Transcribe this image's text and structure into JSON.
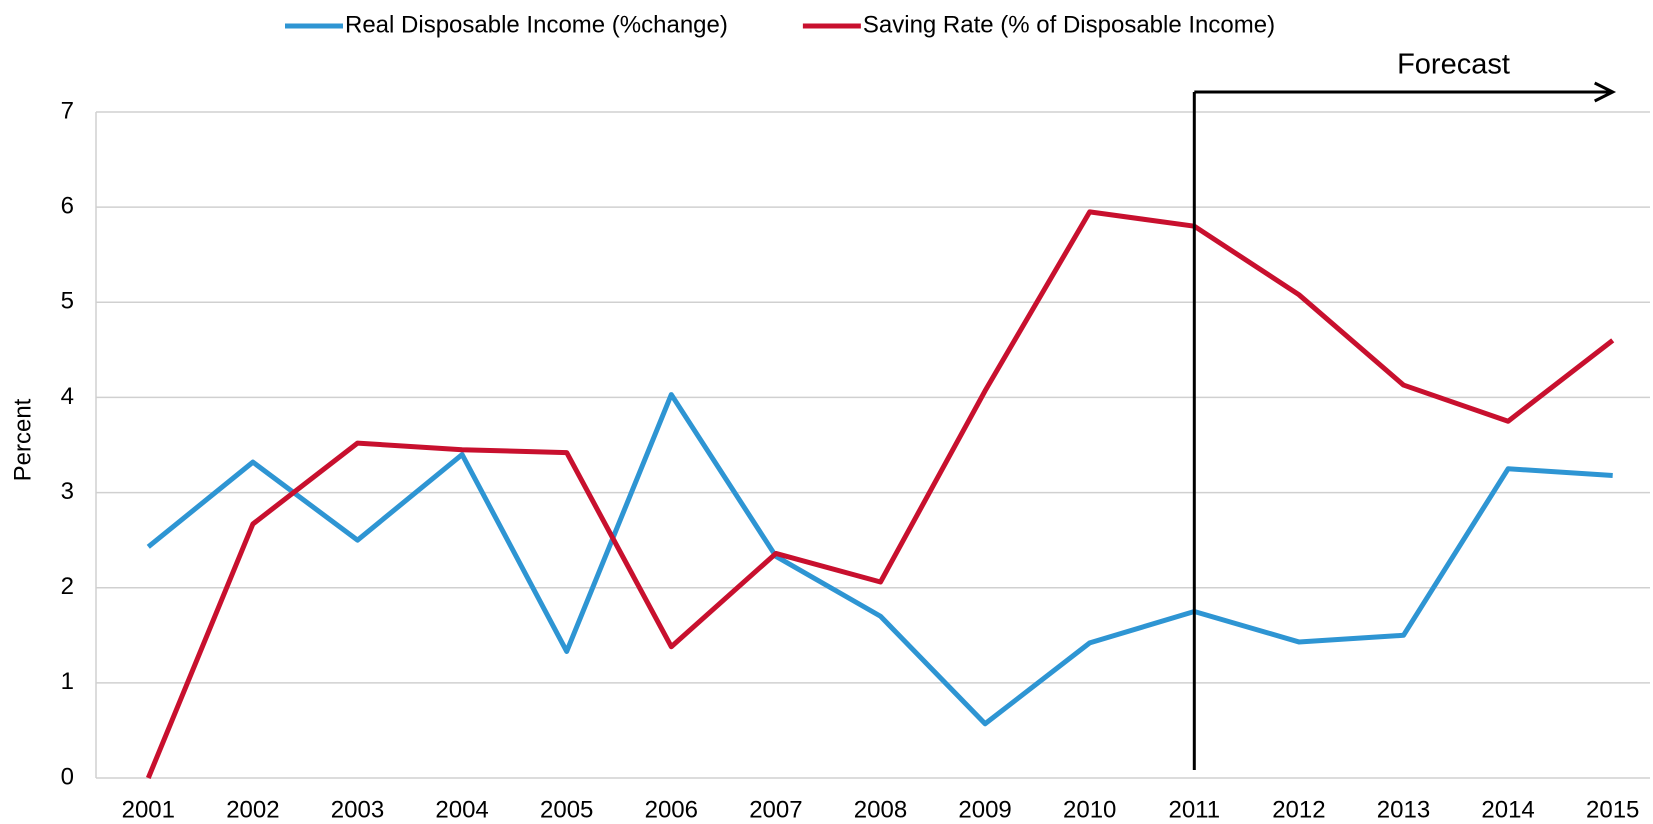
{
  "chart_data": {
    "type": "line",
    "y_label": "Percent",
    "annotation": "Forecast",
    "categories": [
      "2001",
      "2002",
      "2003",
      "2004",
      "2005",
      "2006",
      "2007",
      "2008",
      "2009",
      "2010",
      "2011",
      "2012",
      "2013",
      "2014",
      "2015"
    ],
    "series": [
      {
        "name": "Real Disposable Income (%change)",
        "color": "#2e95d3",
        "values": [
          2.43,
          3.32,
          2.5,
          3.4,
          1.33,
          4.03,
          2.33,
          1.7,
          0.57,
          1.42,
          1.75,
          1.43,
          1.5,
          3.25,
          3.18
        ]
      },
      {
        "name": "Saving Rate (% of Disposable Income)",
        "color": "#c8102e",
        "values": [
          0,
          2.67,
          3.52,
          3.45,
          3.42,
          1.38,
          2.36,
          2.06,
          4.07,
          5.95,
          5.8,
          5.08,
          4.13,
          3.75,
          4.6
        ]
      }
    ],
    "ylim": [
      0,
      7
    ],
    "yticks": [
      0,
      1,
      2,
      3,
      4,
      5,
      6,
      7
    ],
    "grid": true
  }
}
